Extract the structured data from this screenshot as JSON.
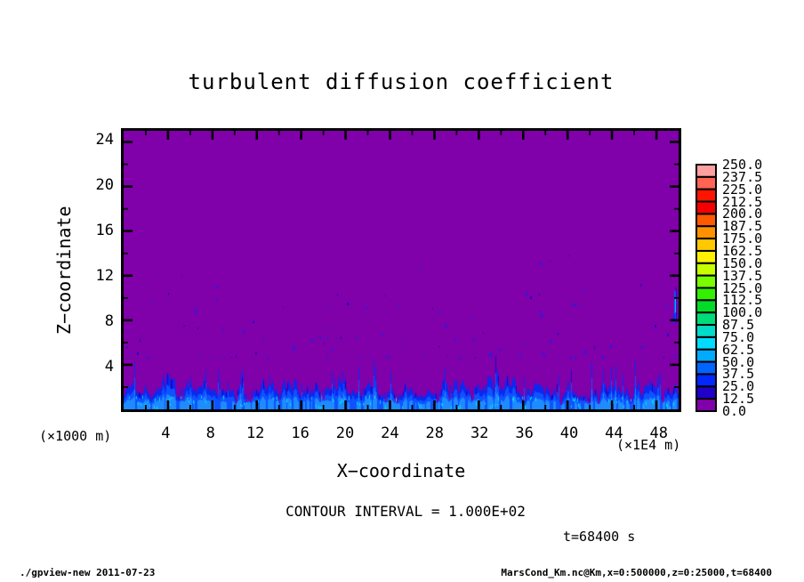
{
  "window": {
    "footer_left": "./gpview-new  2011-07-23",
    "footer_right": "MarsCond_Km.nc@Km,x=0:500000,z=0:25000,t=68400"
  },
  "chart_data": {
    "type": "heatmap",
    "title": "turbulent diffusion coefficient",
    "xlabel": "X−coordinate",
    "ylabel": "Z−coordinate",
    "x_unit_label": "(×1E4 m)",
    "y_unit_label": "(×1000 m)",
    "xlim": [
      0,
      50
    ],
    "zlim": [
      0,
      25
    ],
    "x_ticks_major": [
      4,
      8,
      12,
      16,
      20,
      24,
      28,
      32,
      36,
      40,
      44,
      48
    ],
    "x_tick_minor_step": 2,
    "z_ticks_major": [
      4,
      8,
      12,
      16,
      20,
      24
    ],
    "z_tick_minor_step": 2,
    "contour_note": "CONTOUR INTERVAL = 1.000E+02",
    "time_label": "t=68400 s",
    "colorbar": {
      "level_min": 0.0,
      "level_max": 250.0,
      "level_step": 12.5,
      "labels_top_to_bottom": [
        "250.0",
        "237.5",
        "225.0",
        "212.5",
        "200.0",
        "187.5",
        "175.0",
        "162.5",
        "150.0",
        "137.5",
        "125.0",
        "112.5",
        "100.0",
        "87.5",
        "75.0",
        "62.5",
        "50.0",
        "37.5",
        "25.0",
        "12.5",
        "0.0"
      ],
      "colors_top_to_bottom": [
        "#FFA0A0",
        "#FF6455",
        "#FF1400",
        "#F50000",
        "#FF5A00",
        "#FF9100",
        "#FFC800",
        "#FFF000",
        "#C8FF00",
        "#78FF00",
        "#32F000",
        "#00DC28",
        "#00DC78",
        "#00DCC8",
        "#00DCFF",
        "#00AAFF",
        "#0064FF",
        "#0028FF",
        "#1E00C8",
        "#8000AA"
      ]
    },
    "field": {
      "description": "Km is near zero (0-12.5, purple) through most of the domain; a spiky turbulent boundary layer of blue plumes (values ~12.5-100) fills z below ~5000 m across all x, with sparse blue specks above and a small cyan streak on the right wall near z~8-10 km",
      "background_color": "#8000AA",
      "boundary_layer_top_m": 5000,
      "seed": 1337,
      "speck_count": 120,
      "blue_palette": [
        "#1E00C8",
        "#0A28F0",
        "#0F52FF",
        "#1E8CFF",
        "#00DCFF",
        "#9CF5FF"
      ]
    }
  }
}
